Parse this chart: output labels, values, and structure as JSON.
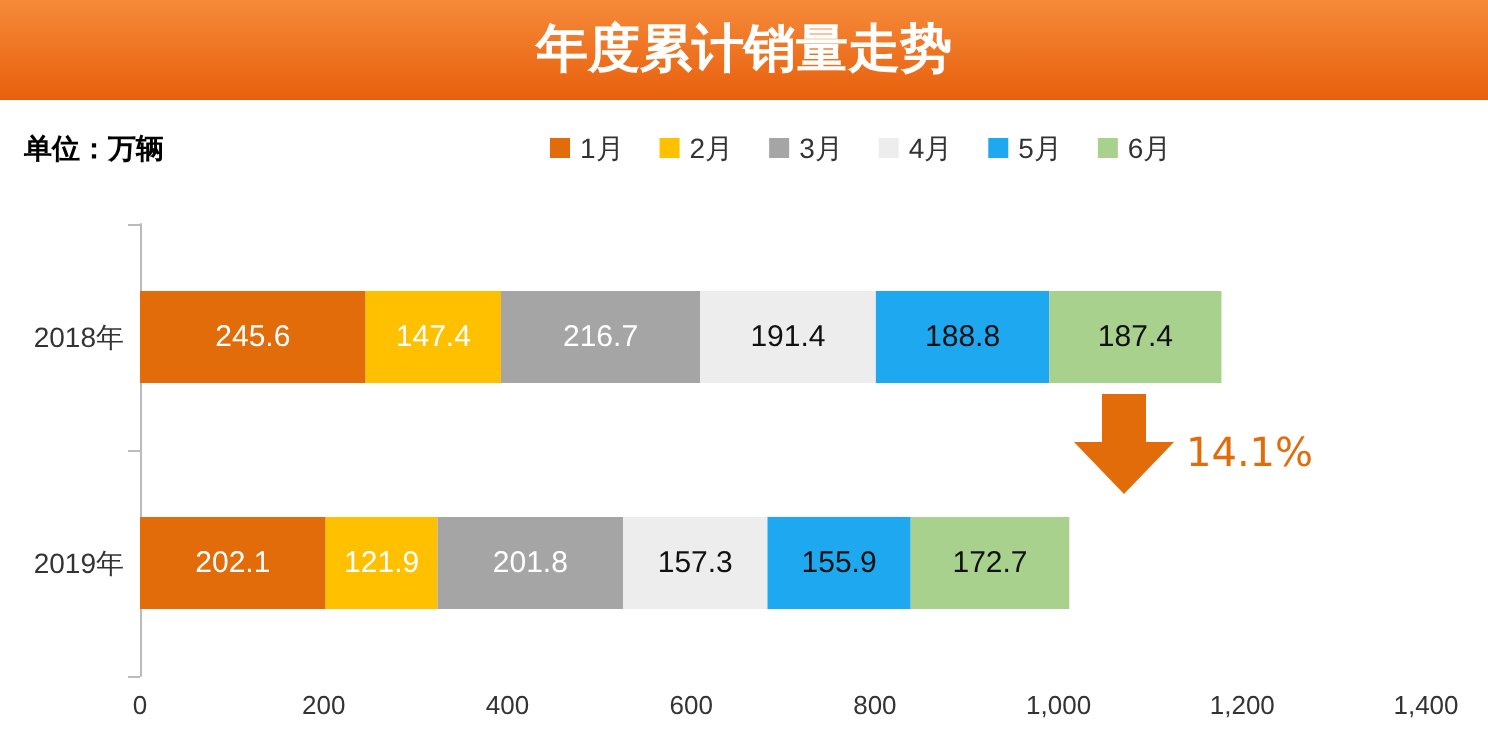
{
  "chart_data": {
    "type": "bar",
    "title": "年度累计销量走势",
    "orientation": "horizontal",
    "stacked": true,
    "categories": [
      "2018年",
      "2019年"
    ],
    "series": [
      {
        "name": "1月",
        "color": "#e36c0a",
        "values": [
          245.6,
          202.1
        ]
      },
      {
        "name": "2月",
        "color": "#ffc000",
        "values": [
          147.4,
          121.9
        ]
      },
      {
        "name": "3月",
        "color": "#a5a5a5",
        "values": [
          216.7,
          201.8
        ]
      },
      {
        "name": "4月",
        "color": "#ededed",
        "values": [
          191.4,
          157.3
        ]
      },
      {
        "name": "5月",
        "color": "#1ea8f0",
        "values": [
          188.8,
          155.9
        ]
      },
      {
        "name": "6月",
        "color": "#a9d18e",
        "values": [
          187.4,
          172.7
        ]
      }
    ],
    "xlim": [
      0,
      1400
    ],
    "xticks": [
      0,
      200,
      400,
      600,
      800,
      {
        "value": 1000,
        "label": "1,000"
      },
      {
        "value": 1200,
        "label": "1,200"
      },
      {
        "value": 1400,
        "label": "1,400"
      }
    ],
    "data_labels": true,
    "legend": "top",
    "grid": false,
    "annotations": [
      "单位：万辆",
      "14.1%"
    ]
  }
}
